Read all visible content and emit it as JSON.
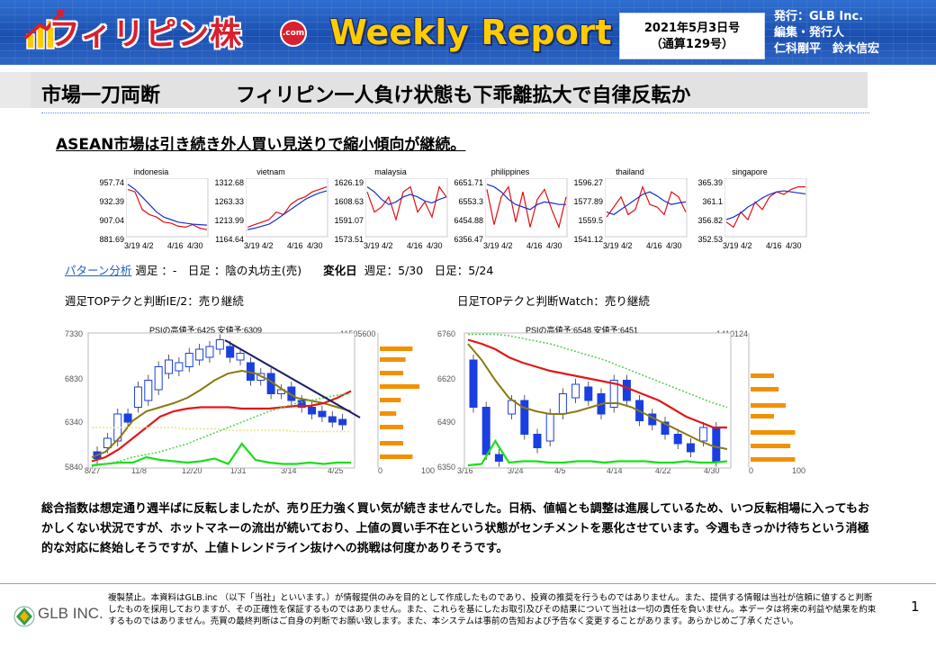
{
  "header": {
    "logo_text": "フィリピン株",
    "logo_badge": ".com",
    "report_title": "Weekly Report",
    "date_line1": "2021年5月3日号",
    "date_line2": "（通算129号）",
    "publisher_line1": "発行：GLB Inc.",
    "publisher_line2": "編集・発行人",
    "publisher_line3": "仁科剛平　鈴木信宏",
    "colors": {
      "header_bg": "#1a4fb0",
      "logo_red": "#d8202e",
      "title_yellow": "#ffcc00"
    }
  },
  "title_bar": {
    "left": "市場一刀両断",
    "right": "フィリピン一人負け状態も下乖離拡大で自律反転か"
  },
  "subtitle": "ASEAN市場は引き続き外人買い見送りで縮小傾向が継続。",
  "mini_charts": [
    {
      "name": "indonesia",
      "yticks": [
        "957.74",
        "932.39",
        "907.04",
        "881.69"
      ],
      "xticks": [
        "3/19",
        "4/2",
        "4/16",
        "4/30"
      ]
    },
    {
      "name": "vietnam",
      "yticks": [
        "1312.68",
        "1263.33",
        "1213.99",
        "1164.64"
      ],
      "xticks": [
        "3/19",
        "4/2",
        "4/16",
        "4/30"
      ]
    },
    {
      "name": "malaysia",
      "yticks": [
        "1626.19",
        "1608.63",
        "1591.07",
        "1573.51"
      ],
      "xticks": [
        "3/19",
        "4/2",
        "4/16",
        "4/30"
      ]
    },
    {
      "name": "philippines",
      "yticks": [
        "6651.71",
        "6553.3",
        "6454.88",
        "6356.47"
      ],
      "xticks": [
        "3/19",
        "4/2",
        "4/16",
        "4/30"
      ]
    },
    {
      "name": "thailand",
      "yticks": [
        "1596.27",
        "1577.89",
        "1559.5",
        "1541.12"
      ],
      "xticks": [
        "3/19",
        "4/2",
        "4/16",
        "4/30"
      ]
    },
    {
      "name": "singapore",
      "yticks": [
        "365.39",
        "361.1",
        "356.82",
        "352.53"
      ],
      "xticks": [
        "3/19",
        "4/2",
        "4/16",
        "4/30"
      ]
    }
  ],
  "pattern": {
    "link": "パターン分析",
    "text": "週足 ：-　日足 ：陰の丸坊主(売)",
    "change_label": "変化日",
    "change_text": "週足：5/30　日足：5/24"
  },
  "weekly_chart": {
    "label": "週足TOPテクと判断IE/2：売り継続",
    "psi": "PSIの高値予:6425 安値予:6309",
    "yticks": [
      "7330",
      "6830",
      "6340",
      "5840"
    ],
    "xticks": [
      "8/27",
      "11/8",
      "12/20",
      "1/31",
      "3/14",
      "4/25"
    ],
    "vol_top": "11505600",
    "hist_x": [
      "0",
      "100"
    ]
  },
  "daily_chart": {
    "label": "日足TOPテクと判断Watch：売り継続",
    "psi": "PSIの高値予:6548 安値予:6451",
    "yticks": [
      "6760",
      "6620",
      "6490",
      "6350"
    ],
    "xticks": [
      "3/16",
      "3/24",
      "4/5",
      "4/14",
      "4/22",
      "4/30"
    ],
    "vol_top": "1410124",
    "hist_x": [
      "0",
      "100"
    ]
  },
  "summary": "総合指数は想定通り週半ばに反転しましたが、売り圧力強く買い気が続きませんでした。日柄、値幅とも調整は進展しているため、いつ反転相場に入ってもおかしくない状況ですが、ホットマネーの流出が続いており、上値の買い手不在という状態がセンチメントを悪化させています。今週もきっかけ待ちという消極的な対応に終始しそうですが、上値トレンドライン抜けへの挑戦は何度かありそうです。",
  "footer": {
    "company": "GLB INC.",
    "disclaimer": "複製禁止。本資料はGLB.inc （以下「当社」といいます。）が情報提供のみを目的として作成したものであり、投資の推奨を行うものではありません。また、提供する情報は当社が信頼に値すると判断したものを採用しておりますが、その正確性を保証するものではありません。また、これらを基にしたお取引及びその結果について当社は一切の責任を負いません。本データは将来の利益や結果を約束するものではありません。売買の最終判断はご自身の判断でお願い致します。また、本システムは事前の告知および予告なく変更することがあります。あらかじめご了承ください。",
    "page_number": "1"
  }
}
